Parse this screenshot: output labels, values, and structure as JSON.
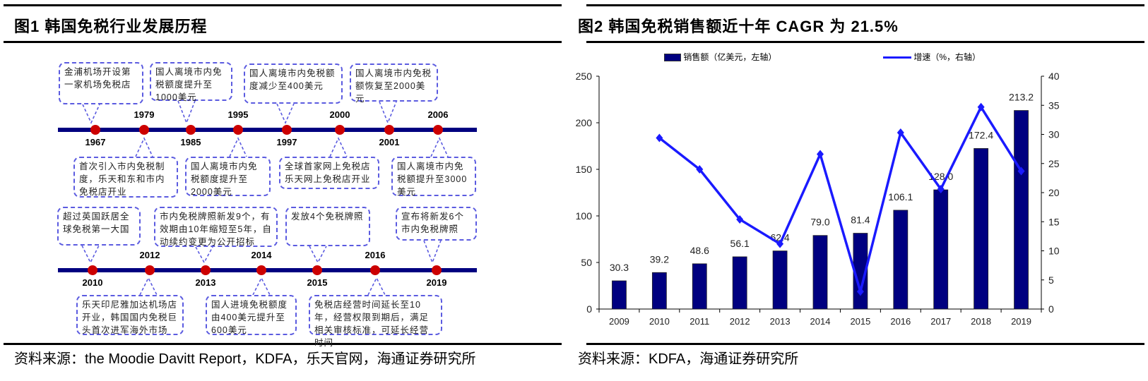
{
  "left_panel": {
    "title": "图1  韩国免税行业发展历程",
    "source": "资料来源：the Moodie Davitt Report，KDFA，乐天官网，海通证券研究所",
    "timeline_rows": [
      {
        "events": [
          {
            "year": "1967",
            "label_side": "below",
            "box_side": "above",
            "text": "金浦机场开设第一家机场免税店"
          },
          {
            "year": "1979",
            "label_side": "above",
            "box_side": "below",
            "text": "首次引入市内免税制度，乐天和东和市内免税店开业"
          },
          {
            "year": "1985",
            "label_side": "below",
            "box_side": "above",
            "text": "国人离境市内免税额度提升至1000美元"
          },
          {
            "year": "1995",
            "label_side": "above",
            "box_side": "below",
            "text": "国人离境市内免税额度提升至2000美元"
          },
          {
            "year": "1997",
            "label_side": "below",
            "box_side": "above",
            "text": "国人离境市内免税额度减少至400美元"
          },
          {
            "year": "2000",
            "label_side": "above",
            "box_side": "below",
            "text": "全球首家网上免税店乐天网上免税店开业"
          },
          {
            "year": "2001",
            "label_side": "below",
            "box_side": "above",
            "text": "国人离境市内免税额恢复至2000美元"
          },
          {
            "year": "2006",
            "label_side": "above",
            "box_side": "below",
            "text": "国人离境市内免税额提升至3000美元"
          }
        ]
      },
      {
        "events": [
          {
            "year": "2010",
            "label_side": "below",
            "box_side": "above",
            "text": "超过英国跃居全球免税第一大国"
          },
          {
            "year": "2012",
            "label_side": "above",
            "box_side": "below",
            "text": "乐天印尼雅加达机场店开业，韩国国内免税巨头首次进军海外市场"
          },
          {
            "year": "2013",
            "label_side": "below",
            "box_side": "above",
            "text": "市内免税牌照新发9个，有效期由10年缩短至5年，自动续约变更为公开招标"
          },
          {
            "year": "2014",
            "label_side": "above",
            "box_side": "below",
            "text": "国人进境免税额度由400美元提升至600美元"
          },
          {
            "year": "2015",
            "label_side": "below",
            "box_side": "above",
            "text": "发放4个免税牌照"
          },
          {
            "year": "2016",
            "label_side": "above",
            "box_side": "below",
            "text": "免税店经营时间延长至10年，经营权限到期后，满足相关审核标准，可延长经营时间"
          },
          {
            "year": "2019",
            "label_side": "below",
            "box_side": "above",
            "text": "宣布将新发6个市内免税牌照"
          }
        ]
      }
    ],
    "colors": {
      "timeline": "#000080",
      "dot": "#cc0000",
      "box_border": "#5b5be0"
    }
  },
  "right_panel": {
    "title": "图2  韩国免税销售额近十年 CAGR 为 21.5%",
    "source": "资料来源：KDFA，海通证券研究所"
  },
  "chart_data": {
    "type": "bar+line",
    "categories": [
      "2009",
      "2010",
      "2011",
      "2012",
      "2013",
      "2014",
      "2015",
      "2016",
      "2017",
      "2018",
      "2019"
    ],
    "series": [
      {
        "name": "销售额（亿美元，左轴）",
        "type": "bar",
        "axis": "left",
        "color": "#000080",
        "values": [
          30.3,
          39.2,
          48.6,
          56.1,
          62.4,
          79.0,
          81.4,
          106.1,
          128.0,
          172.4,
          213.2
        ],
        "data_labels": [
          "30.3",
          "39.2",
          "48.6",
          "56.1",
          "62.4",
          "79.0",
          "81.4",
          "106.1",
          "128.0",
          "172.4",
          "213.2"
        ]
      },
      {
        "name": "增速（%，右轴）",
        "type": "line",
        "axis": "right",
        "color": "#1a1aff",
        "values": [
          null,
          29.4,
          24.0,
          15.4,
          11.2,
          26.6,
          3.0,
          30.3,
          20.6,
          34.7,
          23.7
        ]
      }
    ],
    "left_axis": {
      "range": [
        0,
        250
      ],
      "ticks": [
        "0",
        "50",
        "100",
        "150",
        "200",
        "250"
      ]
    },
    "right_axis": {
      "range": [
        0,
        40
      ],
      "ticks": [
        "0",
        "5",
        "10",
        "15",
        "20",
        "25",
        "30",
        "35",
        "40"
      ]
    },
    "legend_position": "top",
    "grid": false
  }
}
